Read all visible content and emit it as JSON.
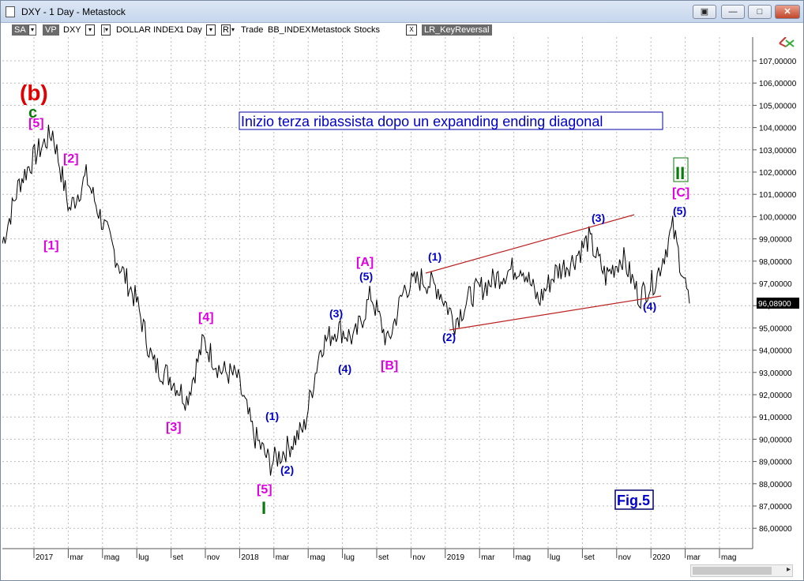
{
  "window": {
    "title": "DXY - 1 Day - Metastock"
  },
  "toolbar": {
    "sa": "SA",
    "vp": "VP",
    "symbol": "DXY",
    "name": "DOLLAR INDEX",
    "period": "1 Day",
    "r": "R",
    "trade": "Trade",
    "bb": "BB_INDEX",
    "metastock": "Metastock",
    "stocks": "Stocks",
    "x": "X",
    "indicator": "LR_KeyReversal"
  },
  "chart_data": {
    "type": "line",
    "title": "Inizio terza ribassista dopo un expanding ending diagonal",
    "figure_label": "Fig.5",
    "last_value_label": "96,08900",
    "ylim": [
      85,
      108
    ],
    "y_ticks": [
      "107,00000",
      "106,00000",
      "105,00000",
      "104,00000",
      "103,00000",
      "102,00000",
      "101,00000",
      "100,00000",
      "99,00000",
      "98,00000",
      "97,00000",
      "96,00000",
      "95,00000",
      "94,00000",
      "93,00000",
      "92,00000",
      "91,00000",
      "90,00000",
      "89,00000",
      "88,00000",
      "87,00000",
      "86,00000"
    ],
    "x_ticks": [
      "2017",
      "mar",
      "mag",
      "lug",
      "set",
      "nov",
      "2018",
      "mar",
      "mag",
      "lug",
      "set",
      "nov",
      "2019",
      "mar",
      "mag",
      "lug",
      "set",
      "nov",
      "2020",
      "mar",
      "mag"
    ],
    "series": [
      {
        "x": [
          "2016-10",
          "2016-11",
          "2016-12",
          "2017-01",
          "2017-02",
          "2017-03",
          "2017-04",
          "2017-05",
          "2017-06",
          "2017-07",
          "2017-08",
          "2017-09",
          "2017-10",
          "2017-11",
          "2017-12",
          "2018-01",
          "2018-02",
          "2018-03",
          "2018-04",
          "2018-05",
          "2018-06",
          "2018-07",
          "2018-08",
          "2018-09",
          "2018-10",
          "2018-11",
          "2018-12",
          "2019-01",
          "2019-02",
          "2019-03",
          "2019-04",
          "2019-05",
          "2019-06",
          "2019-07",
          "2019-08",
          "2019-09",
          "2019-10",
          "2019-11",
          "2019-12",
          "2020-01",
          "2020-02",
          "2020-03"
        ],
        "values": [
          98.8,
          101.5,
          102.8,
          103.8,
          100.3,
          101.8,
          99.7,
          97.8,
          96.2,
          93.4,
          92.8,
          91.8,
          94.4,
          93.1,
          92.8,
          90.2,
          88.9,
          89.6,
          90.5,
          94.2,
          95.0,
          94.5,
          96.5,
          94.3,
          96.8,
          97.2,
          96.8,
          95.3,
          96.5,
          97.0,
          97.5,
          97.8,
          96.2,
          97.5,
          98.0,
          99.0,
          97.3,
          98.2,
          96.4,
          97.2,
          99.5,
          96.1
        ]
      }
    ],
    "annotations": [
      "(b)",
      "c",
      "[5]",
      "[2]",
      "[1]",
      "[3]",
      "[4]",
      "[5]",
      "I",
      "(1)",
      "(2)",
      "(3)",
      "(4)",
      "(5)",
      "[A]",
      "[B]",
      "(1)",
      "(2)",
      "(3)",
      "(4)",
      "(5)",
      "[C]",
      "II"
    ]
  }
}
